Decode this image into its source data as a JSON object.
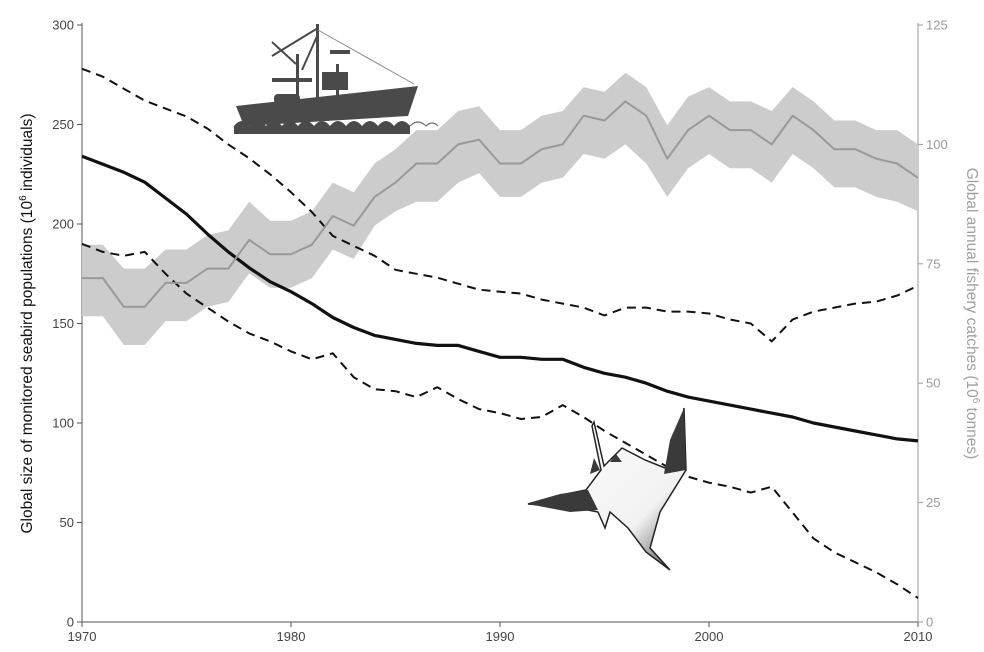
{
  "chart_data": {
    "type": "line",
    "x_axis": {
      "ticks": [
        1970,
        1980,
        1990,
        2000,
        2010
      ],
      "range": [
        1970,
        2010
      ]
    },
    "y_left": {
      "label_main": "Global size of monitored seabird populations (10",
      "label_sup": "6",
      "label_end": " individuals)",
      "range": [
        0,
        300
      ],
      "ticks": [
        "0",
        "50",
        "100",
        "150",
        "200",
        "250",
        "300"
      ],
      "color": "#111111"
    },
    "y_right": {
      "label_main": "Global annual fishery catches (10",
      "label_sup": "6",
      "label_end": " tonnes)",
      "range": [
        0,
        125
      ],
      "ticks": [
        "0",
        "25",
        "50",
        "75",
        "100",
        "125"
      ],
      "color": "#a0a0a0"
    },
    "grid": false,
    "x": [
      1970,
      1971,
      1972,
      1973,
      1974,
      1975,
      1976,
      1977,
      1978,
      1979,
      1980,
      1981,
      1982,
      1983,
      1984,
      1985,
      1986,
      1987,
      1988,
      1989,
      1990,
      1991,
      1992,
      1993,
      1994,
      1995,
      1996,
      1997,
      1998,
      1999,
      2000,
      2001,
      2002,
      2003,
      2004,
      2005,
      2006,
      2007,
      2008,
      2009,
      2010
    ],
    "series": [
      {
        "axis": "left",
        "style": "solid",
        "color": "#111111",
        "values": [
          234,
          230,
          226,
          221,
          213,
          205,
          195,
          186,
          178,
          171,
          166,
          160,
          153,
          148,
          144,
          142,
          140,
          139,
          139,
          136,
          133,
          133,
          132,
          132,
          128,
          125,
          123,
          120,
          116,
          113,
          111,
          109,
          107,
          105,
          103,
          100,
          98,
          96,
          94,
          92,
          91
        ]
      },
      {
        "axis": "left",
        "style": "dashed",
        "color": "#111111",
        "values": [
          278,
          274,
          268,
          262,
          258,
          254,
          248,
          240,
          233,
          225,
          216,
          206,
          194,
          189,
          184,
          177,
          175,
          173,
          170,
          167,
          166,
          165,
          162,
          160,
          158,
          154,
          158,
          158,
          156,
          156,
          155,
          152,
          150,
          141,
          152,
          156,
          158,
          160,
          161,
          164,
          169
        ]
      },
      {
        "axis": "left",
        "style": "dashed",
        "color": "#111111",
        "values": [
          190,
          186,
          184,
          186,
          175,
          165,
          158,
          151,
          145,
          141,
          136,
          132,
          135,
          123,
          117,
          116,
          113,
          118,
          112,
          107,
          105,
          102,
          103,
          109,
          103,
          96,
          90,
          84,
          78,
          73,
          70,
          68,
          65,
          68,
          55,
          42,
          35,
          30,
          25,
          19,
          12
        ]
      },
      {
        "axis": "right",
        "style": "solid",
        "color": "#999999",
        "band_color": "#cccccc",
        "values": [
          72,
          72,
          66,
          66,
          71,
          71,
          74,
          74,
          80,
          77,
          77,
          79,
          85,
          83,
          89,
          92,
          96,
          96,
          100,
          101,
          96,
          96,
          99,
          100,
          106,
          105,
          109,
          106,
          97,
          103,
          106,
          103,
          103,
          100,
          106,
          103,
          99,
          99,
          97,
          96,
          93
        ],
        "lower": [
          64,
          64,
          58,
          58,
          63,
          63,
          66,
          67,
          73,
          70,
          70,
          72,
          78,
          76,
          83,
          86,
          88,
          88,
          92,
          94,
          89,
          89,
          92,
          93,
          98,
          97,
          100,
          96,
          89,
          95,
          98,
          95,
          95,
          92,
          98,
          95,
          91,
          91,
          89,
          88,
          86
        ],
        "upper": [
          79,
          79,
          74,
          74,
          78,
          78,
          81,
          82,
          88,
          84,
          84,
          86,
          92,
          90,
          96,
          99,
          103,
          103,
          107,
          108,
          103,
          103,
          106,
          107,
          112,
          111,
          115,
          112,
          104,
          110,
          112,
          109,
          109,
          107,
          112,
          109,
          105,
          105,
          103,
          103,
          100
        ]
      }
    ]
  },
  "illustrations": [
    {
      "name": "fishing-boat-icon",
      "color": "#4a4a4a"
    },
    {
      "name": "seabird-icon",
      "color": "#333333"
    }
  ]
}
